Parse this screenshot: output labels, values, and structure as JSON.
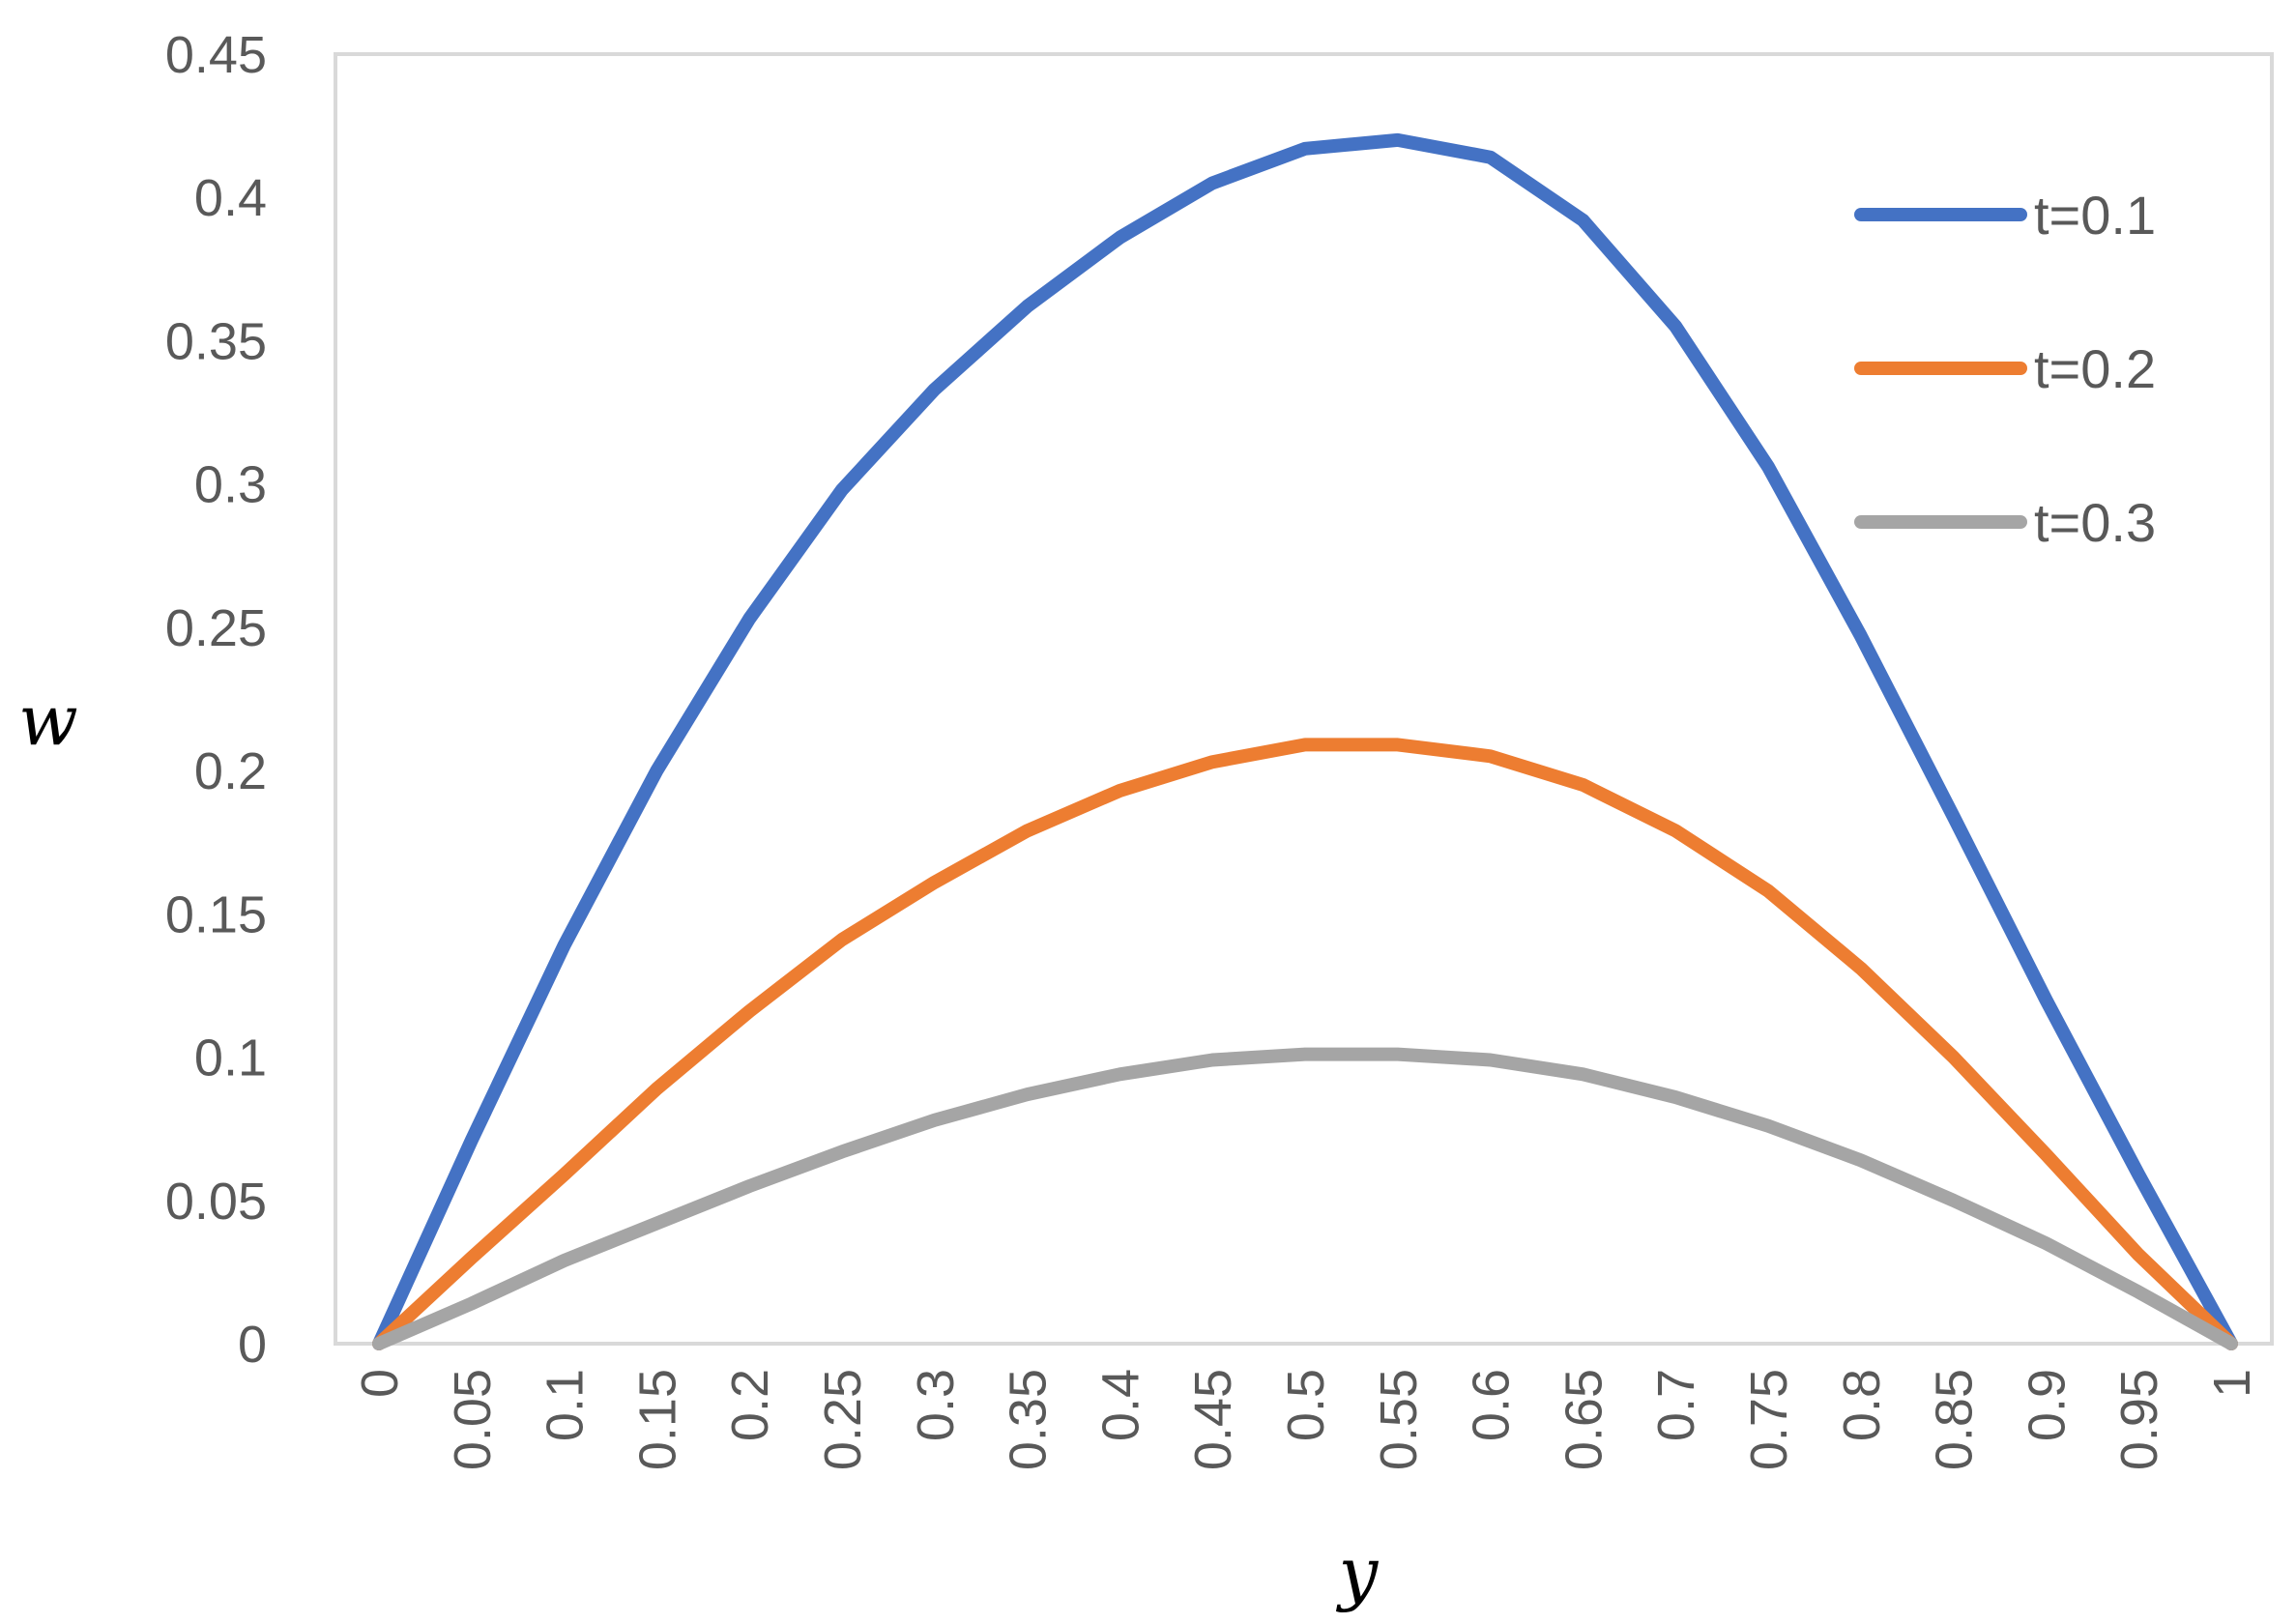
{
  "chart_data": {
    "type": "line",
    "title": "",
    "xlabel": "y",
    "ylabel": "w",
    "ylim": [
      0,
      0.45
    ],
    "yticks": [
      0,
      0.05,
      0.1,
      0.15,
      0.2,
      0.25,
      0.3,
      0.35,
      0.4,
      0.45
    ],
    "ytick_labels": [
      "0",
      "0.05",
      "0.1",
      "0.15",
      "0.2",
      "0.25",
      "0.3",
      "0.35",
      "0.4",
      "0.45"
    ],
    "categories": [
      "0",
      "0.05",
      "0.1",
      "0.15",
      "0.2",
      "0.25",
      "0.3",
      "0.35",
      "0.4",
      "0.45",
      "0.5",
      "0.55",
      "0.6",
      "0.65",
      "0.7",
      "0.75",
      "0.8",
      "0.85",
      "0.9",
      "0.95",
      "1"
    ],
    "grid": false,
    "legend_position": "top-right",
    "series": [
      {
        "name": "t=0.1",
        "color": "#4472C4",
        "values": [
          0,
          0.071,
          0.139,
          0.2,
          0.253,
          0.298,
          0.333,
          0.362,
          0.386,
          0.405,
          0.417,
          0.42,
          0.414,
          0.392,
          0.355,
          0.306,
          0.247,
          0.184,
          0.12,
          0.059,
          0
        ]
      },
      {
        "name": "t=0.2",
        "color": "#ED7D31",
        "values": [
          0,
          0.03,
          0.059,
          0.089,
          0.116,
          0.141,
          0.161,
          0.179,
          0.193,
          0.203,
          0.209,
          0.209,
          0.205,
          0.195,
          0.179,
          0.158,
          0.131,
          0.1,
          0.066,
          0.031,
          0
        ]
      },
      {
        "name": "t=0.3",
        "color": "#A5A5A5",
        "values": [
          0,
          0.014,
          0.029,
          0.042,
          0.055,
          0.067,
          0.078,
          0.087,
          0.094,
          0.099,
          0.101,
          0.101,
          0.099,
          0.094,
          0.086,
          0.076,
          0.064,
          0.05,
          0.035,
          0.018,
          0
        ]
      }
    ]
  }
}
